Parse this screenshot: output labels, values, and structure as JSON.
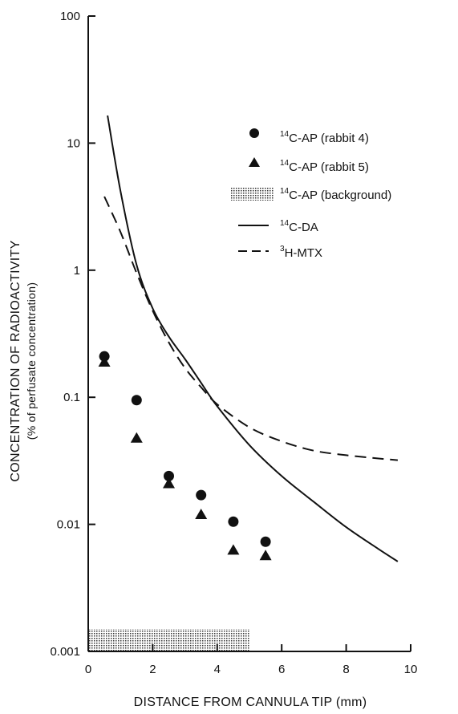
{
  "chart_data": {
    "type": "scatter",
    "title": "",
    "xlabel": "DISTANCE FROM CANNULA TIP (mm)",
    "ylabel": "CONCENTRATION OF RADIOACTIVITY",
    "ylabel_sub": "(% of perfusate concentration)",
    "xlim": [
      0,
      10
    ],
    "ylim": [
      0.001,
      100
    ],
    "yscale": "log",
    "x_ticks": [
      0,
      2,
      4,
      6,
      8,
      10
    ],
    "y_ticks": [
      0.001,
      0.01,
      0.1,
      1,
      10,
      100
    ],
    "x_tick_labels": [
      "0",
      "2",
      "4",
      "6",
      "8",
      "10"
    ],
    "y_tick_labels": [
      "0.001",
      "0.01",
      "0.1",
      "1",
      "10",
      "100"
    ],
    "grid": false,
    "legend_position": "top-right",
    "series": [
      {
        "name": "C-AP (rabbit 4)",
        "isotope": "14",
        "kind": "points",
        "marker": "circle",
        "x": [
          0.5,
          1.5,
          2.5,
          3.5,
          4.5,
          5.5
        ],
        "y": [
          0.21,
          0.095,
          0.024,
          0.017,
          0.0105,
          0.0073
        ]
      },
      {
        "name": "C-AP (rabbit 5)",
        "isotope": "14",
        "kind": "points",
        "marker": "triangle",
        "x": [
          0.5,
          1.5,
          2.5,
          3.5,
          4.5,
          5.5
        ],
        "y": [
          0.19,
          0.048,
          0.021,
          0.012,
          0.0063,
          0.0057
        ]
      },
      {
        "name": "C-AP (background)",
        "isotope": "14",
        "kind": "band",
        "x": [
          0,
          5
        ],
        "y": [
          0.001,
          0.0015
        ]
      },
      {
        "name": "C-DA",
        "isotope": "14",
        "kind": "line",
        "style": "solid",
        "x": [
          0.6,
          1,
          1.5,
          2,
          2.5,
          3,
          3.5,
          4,
          5,
          6,
          7,
          8,
          9,
          9.6
        ],
        "y": [
          16.5,
          4.2,
          1.1,
          0.5,
          0.3,
          0.2,
          0.13,
          0.085,
          0.042,
          0.024,
          0.015,
          0.0095,
          0.0064,
          0.0051
        ]
      },
      {
        "name": "H-MTX",
        "isotope": "3",
        "kind": "line",
        "style": "dashed",
        "x": [
          0.5,
          1,
          1.5,
          2,
          2.5,
          3,
          3.5,
          4,
          5,
          6,
          7,
          8,
          9,
          9.6
        ],
        "y": [
          3.8,
          2.0,
          0.95,
          0.48,
          0.27,
          0.17,
          0.12,
          0.088,
          0.058,
          0.045,
          0.038,
          0.035,
          0.033,
          0.032
        ]
      }
    ]
  }
}
